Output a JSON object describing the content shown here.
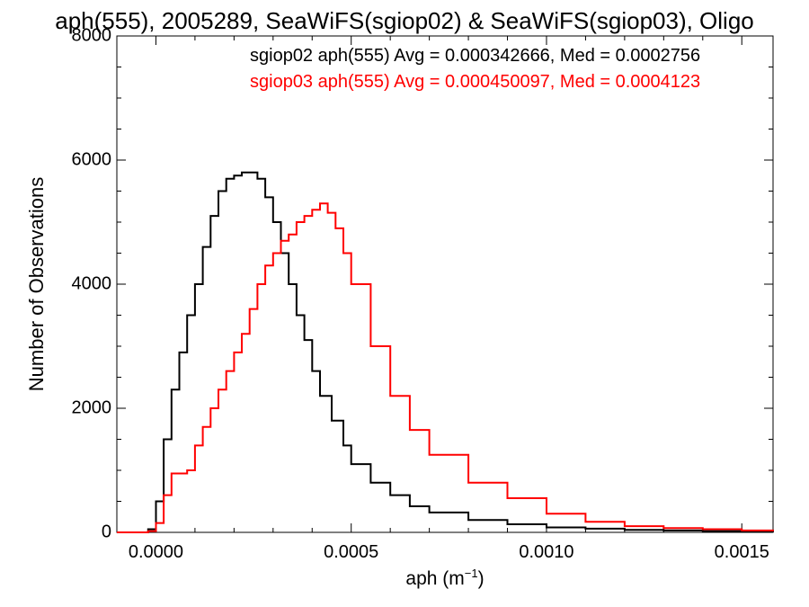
{
  "chart_data": {
    "type": "line",
    "title": "aph(555), 2005289, SeaWiFS(sgiop02) & SeaWiFS(sgiop03), Oligo",
    "xlabel_base": "aph (m",
    "xlabel_sup": "−1",
    "xlabel_close": ")",
    "ylabel": "Number of Observations",
    "xlim": [
      -0.0001,
      0.00158
    ],
    "ylim": [
      0,
      8000
    ],
    "x_ticks": [
      {
        "value": 0.0,
        "label": "0.0000"
      },
      {
        "value": 0.0005,
        "label": "0.0005"
      },
      {
        "value": 0.001,
        "label": "0.0010"
      },
      {
        "value": 0.0015,
        "label": "0.0015"
      }
    ],
    "y_ticks": [
      {
        "value": 0,
        "label": "0"
      },
      {
        "value": 2000,
        "label": "2000"
      },
      {
        "value": 4000,
        "label": "4000"
      },
      {
        "value": 6000,
        "label": "6000"
      },
      {
        "value": 8000,
        "label": "8000"
      }
    ],
    "legend_placement": "top-right",
    "series": [
      {
        "name": "sgiop02 aph(555) Avg = 0.000342666, Med = 0.0002756",
        "color": "#000000",
        "x": [
          -0.0001,
          -5e-05,
          -2e-05,
          0.0,
          2e-05,
          4e-05,
          6e-05,
          8e-05,
          0.0001,
          0.00012,
          0.00014,
          0.00016,
          0.00018,
          0.0002,
          0.00022,
          0.00024,
          0.00026,
          0.00028,
          0.0003,
          0.00032,
          0.00034,
          0.00036,
          0.00038,
          0.0004,
          0.00042,
          0.00045,
          0.00048,
          0.0005,
          0.00055,
          0.0006,
          0.00065,
          0.0007,
          0.0008,
          0.0009,
          0.001,
          0.0011,
          0.0012,
          0.0013,
          0.0014,
          0.0015,
          0.00158
        ],
        "y": [
          0,
          0,
          50,
          500,
          1500,
          2300,
          2900,
          3500,
          4000,
          4600,
          5100,
          5500,
          5700,
          5750,
          5800,
          5800,
          5700,
          5400,
          5000,
          4500,
          4000,
          3500,
          3100,
          2600,
          2200,
          1800,
          1400,
          1100,
          800,
          600,
          420,
          320,
          200,
          130,
          80,
          60,
          40,
          30,
          20,
          10,
          5
        ]
      },
      {
        "name": "sgiop03 aph(555) Avg = 0.000450097, Med = 0.0004123",
        "color": "#ff0000",
        "x": [
          -0.0001,
          -5e-05,
          -2e-05,
          0.0,
          2e-05,
          4e-05,
          6e-05,
          8e-05,
          0.0001,
          0.00012,
          0.00014,
          0.00016,
          0.00018,
          0.0002,
          0.00022,
          0.00024,
          0.00026,
          0.00028,
          0.0003,
          0.00032,
          0.00034,
          0.00036,
          0.00038,
          0.0004,
          0.00042,
          0.00044,
          0.00046,
          0.00048,
          0.0005,
          0.00055,
          0.0006,
          0.00065,
          0.0007,
          0.0008,
          0.0009,
          0.001,
          0.0011,
          0.0012,
          0.0013,
          0.0014,
          0.0015,
          0.00158
        ],
        "y": [
          0,
          0,
          20,
          150,
          600,
          950,
          950,
          1000,
          1400,
          1700,
          2000,
          2300,
          2600,
          2900,
          3200,
          3600,
          4000,
          4300,
          4500,
          4700,
          4800,
          5000,
          5100,
          5200,
          5300,
          5150,
          4900,
          4500,
          4000,
          3000,
          2200,
          1650,
          1250,
          800,
          550,
          300,
          170,
          100,
          70,
          50,
          30,
          20
        ]
      }
    ]
  }
}
